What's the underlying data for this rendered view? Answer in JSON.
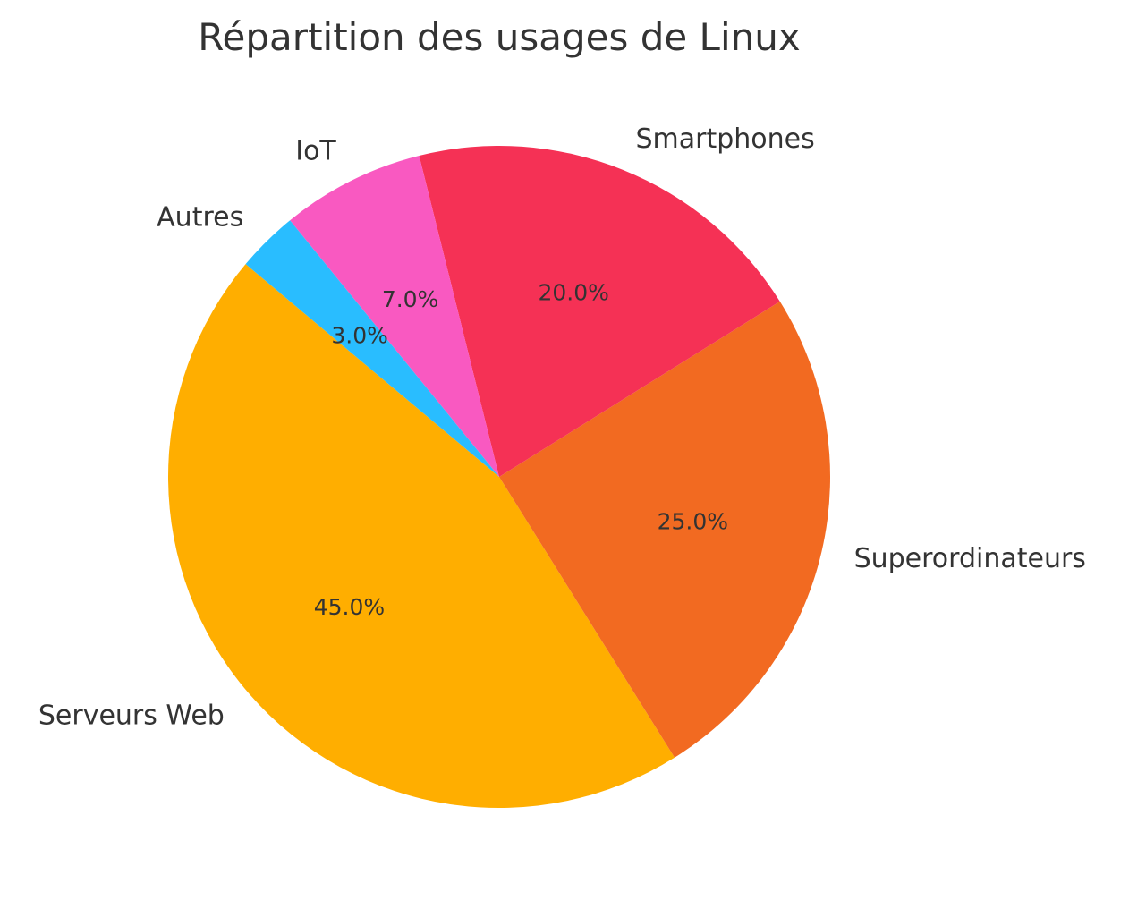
{
  "chart_data": {
    "type": "pie",
    "title": "Répartition des usages de Linux",
    "start_angle_deg": 140,
    "direction": "counterclockwise",
    "slices": [
      {
        "label": "Serveurs Web",
        "value": 45.0,
        "pct_label": "45.0%",
        "color": "#FFAE00"
      },
      {
        "label": "Superordinateurs",
        "value": 25.0,
        "pct_label": "25.0%",
        "color": "#F26A21"
      },
      {
        "label": "Smartphones",
        "value": 20.0,
        "pct_label": "20.0%",
        "color": "#F53155"
      },
      {
        "label": "IoT",
        "value": 7.0,
        "pct_label": "7.0%",
        "color": "#F959C1"
      },
      {
        "label": "Autres",
        "value": 3.0,
        "pct_label": "3.0%",
        "color": "#29BDFF"
      }
    ]
  }
}
